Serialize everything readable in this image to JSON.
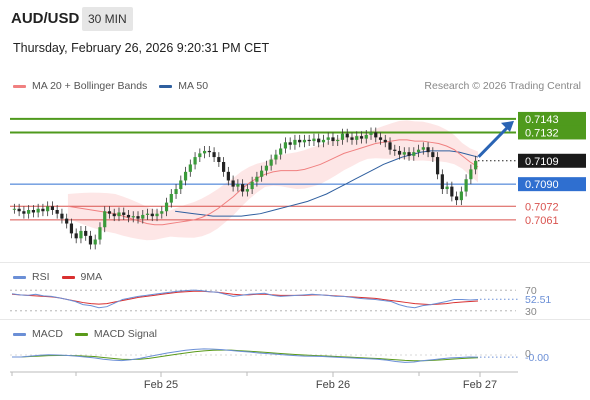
{
  "header": {
    "symbol": "AUD/USD",
    "timeframe": "30 MIN",
    "datetime": "Thursday, February 26, 2026 9:20:31 PM CET"
  },
  "legend": {
    "ma20_label": "MA 20 + Bollinger Bands",
    "ma50_label": "MA 50",
    "copyright": "Research © 2026 Trading Central",
    "rsi_label": "RSI",
    "rsi_ma_label": "9MA",
    "macd_label": "MACD",
    "macd_signal_label": "MACD Signal"
  },
  "colors": {
    "green_level": "#4f9a1d",
    "blue_level": "#2f6fd0",
    "red_level": "#d9534f",
    "current_price_bg": "#1a1a1a",
    "ma20": "#f08080",
    "ma50": "#2f5f9f",
    "bollinger_fill": "#fde0e0",
    "arrow": "#2a64b4",
    "rsi": "#6b8fd6",
    "rsi_ma": "#d93030",
    "macd": "#6b8fd6",
    "macd_signal": "#5a9a1a"
  },
  "chart_data": [
    {
      "type": "candlestick",
      "title": "AUD/USD 30 MIN",
      "x_ticks": [
        "Feb 25",
        "Feb 26",
        "Feb 27"
      ],
      "price_levels": [
        {
          "value": 0.7143,
          "label": "0.7143",
          "kind": "resistance",
          "color": "green"
        },
        {
          "value": 0.7132,
          "label": "0.7132",
          "kind": "resistance",
          "color": "green"
        },
        {
          "value": 0.7109,
          "label": "0.7109",
          "kind": "current_price",
          "color": "black"
        },
        {
          "value": 0.709,
          "label": "0.7090",
          "kind": "pivot",
          "color": "blue"
        },
        {
          "value": 0.7072,
          "label": "0.7072",
          "kind": "support",
          "color": "red"
        },
        {
          "value": 0.7061,
          "label": "0.7061",
          "kind": "support",
          "color": "red"
        }
      ],
      "ylim": [
        0.703,
        0.716
      ],
      "close_series": [
        0.707,
        0.7068,
        0.7066,
        0.7069,
        0.7067,
        0.707,
        0.7068,
        0.7072,
        0.7069,
        0.7066,
        0.7062,
        0.7058,
        0.705,
        0.7046,
        0.7052,
        0.7048,
        0.7041,
        0.7045,
        0.7055,
        0.7068,
        0.7066,
        0.7064,
        0.7067,
        0.7065,
        0.7063,
        0.7064,
        0.7062,
        0.7065,
        0.7066,
        0.7064,
        0.7066,
        0.7068,
        0.7075,
        0.7082,
        0.7086,
        0.7093,
        0.71,
        0.7106,
        0.7112,
        0.7115,
        0.7117,
        0.7116,
        0.7112,
        0.7108,
        0.71,
        0.7093,
        0.7088,
        0.709,
        0.7084,
        0.7086,
        0.7092,
        0.7096,
        0.7101,
        0.7105,
        0.711,
        0.7114,
        0.7119,
        0.7124,
        0.7122,
        0.7126,
        0.7124,
        0.7126,
        0.7125,
        0.7127,
        0.7124,
        0.7126,
        0.7128,
        0.7125,
        0.7126,
        0.7131,
        0.7128,
        0.7126,
        0.7129,
        0.7127,
        0.713,
        0.7132,
        0.7128,
        0.7126,
        0.7124,
        0.7118,
        0.7117,
        0.7114,
        0.7116,
        0.7113,
        0.7116,
        0.7118,
        0.712,
        0.7116,
        0.7112,
        0.7098,
        0.7086,
        0.7088,
        0.708,
        0.7077,
        0.7084,
        0.7094,
        0.7102,
        0.7109
      ],
      "ma20": [
        0.7072,
        0.7071,
        0.707,
        0.7069,
        0.7068,
        0.7067,
        0.7066,
        0.7064,
        0.7062,
        0.706,
        0.7058,
        0.7057,
        0.7057,
        0.7058,
        0.7059,
        0.706,
        0.7061,
        0.7063,
        0.7066,
        0.707,
        0.7075,
        0.708,
        0.7086,
        0.7091,
        0.7095,
        0.7098,
        0.71,
        0.7101,
        0.7101,
        0.7101,
        0.7102,
        0.7104,
        0.7106,
        0.7109,
        0.7112,
        0.7115,
        0.7117,
        0.7119,
        0.7121,
        0.7123,
        0.7124,
        0.7125,
        0.7126,
        0.7126,
        0.7125,
        0.7125,
        0.7124,
        0.7123,
        0.7121,
        0.7118,
        0.7113,
        0.7108,
        0.7104
      ],
      "ma50": [
        0.7068,
        0.7067,
        0.7066,
        0.7065,
        0.7064,
        0.7064,
        0.7064,
        0.7064,
        0.7065,
        0.7066,
        0.7068,
        0.707,
        0.7072,
        0.7074,
        0.7076,
        0.7079,
        0.7082,
        0.7086,
        0.709,
        0.7094,
        0.7098,
        0.7102,
        0.7106,
        0.7109,
        0.7112,
        0.7114,
        0.7116,
        0.7117,
        0.7117,
        0.7117,
        0.7116,
        0.7114,
        0.7112
      ]
    },
    {
      "type": "line",
      "title": "RSI",
      "series": [
        {
          "name": "RSI",
          "last_value": 52.51
        },
        {
          "name": "9MA"
        }
      ],
      "y_ticks": [
        "70",
        "30"
      ],
      "ylim": [
        0,
        100
      ],
      "rsi_values": [
        63,
        61,
        60,
        62,
        59,
        58,
        55,
        52,
        48,
        42,
        40,
        36,
        38,
        45,
        52,
        55,
        58,
        60,
        62,
        64,
        66,
        68,
        69,
        70,
        69,
        67,
        66,
        62,
        58,
        60,
        62,
        63,
        64,
        60,
        58,
        59,
        60,
        61,
        62,
        61,
        60,
        58,
        58,
        56,
        54,
        53,
        52,
        50,
        48,
        42,
        38,
        36,
        40,
        42,
        45,
        48,
        52,
        52,
        51,
        52
      ],
      "rsi_ma_values": [
        62,
        61,
        60,
        59,
        58,
        57,
        55,
        52,
        49,
        46,
        44,
        43,
        44,
        47,
        50,
        53,
        56,
        58,
        60,
        62,
        64,
        66,
        67,
        68,
        68,
        67,
        66,
        64,
        62,
        61,
        61,
        62,
        62,
        61,
        60,
        60,
        60,
        60,
        61,
        61,
        60,
        59,
        58,
        57,
        56,
        55,
        54,
        52,
        50,
        48,
        46,
        44,
        43,
        42,
        43,
        44,
        46,
        47,
        48,
        49
      ],
      "value_label": "52.51"
    },
    {
      "type": "line",
      "title": "MACD",
      "series": [
        {
          "name": "MACD",
          "last_value": -0.0
        },
        {
          "name": "MACD Signal"
        }
      ],
      "y_ticks": [
        "0"
      ],
      "value_label": "-0.00",
      "macd_values": [
        0.0,
        0.0,
        0.1,
        0.2,
        0.25,
        0.22,
        0.18,
        0.1,
        0.0,
        -0.1,
        -0.25,
        -0.35,
        -0.4,
        -0.3,
        -0.15,
        0.05,
        0.25,
        0.45,
        0.6,
        0.75,
        0.85,
        0.9,
        0.88,
        0.82,
        0.72,
        0.62,
        0.55,
        0.45,
        0.38,
        0.3,
        0.22,
        0.15,
        0.1,
        0.08,
        0.05,
        0.0,
        -0.05,
        -0.1,
        -0.15,
        -0.2,
        -0.25,
        -0.35,
        -0.5,
        -0.6,
        -0.55,
        -0.4,
        -0.3,
        -0.2,
        -0.1,
        -0.05,
        0.0,
        -0.02
      ],
      "macd_signal_values": [
        0.0,
        0.0,
        0.05,
        0.1,
        0.15,
        0.17,
        0.17,
        0.15,
        0.1,
        0.05,
        -0.05,
        -0.15,
        -0.25,
        -0.28,
        -0.25,
        -0.15,
        0.0,
        0.15,
        0.3,
        0.45,
        0.58,
        0.68,
        0.75,
        0.78,
        0.76,
        0.7,
        0.64,
        0.57,
        0.5,
        0.42,
        0.35,
        0.28,
        0.22,
        0.17,
        0.12,
        0.08,
        0.03,
        -0.02,
        -0.07,
        -0.12,
        -0.17,
        -0.23,
        -0.3,
        -0.38,
        -0.42,
        -0.42,
        -0.38,
        -0.32,
        -0.25,
        -0.18,
        -0.12,
        -0.08
      ]
    }
  ]
}
